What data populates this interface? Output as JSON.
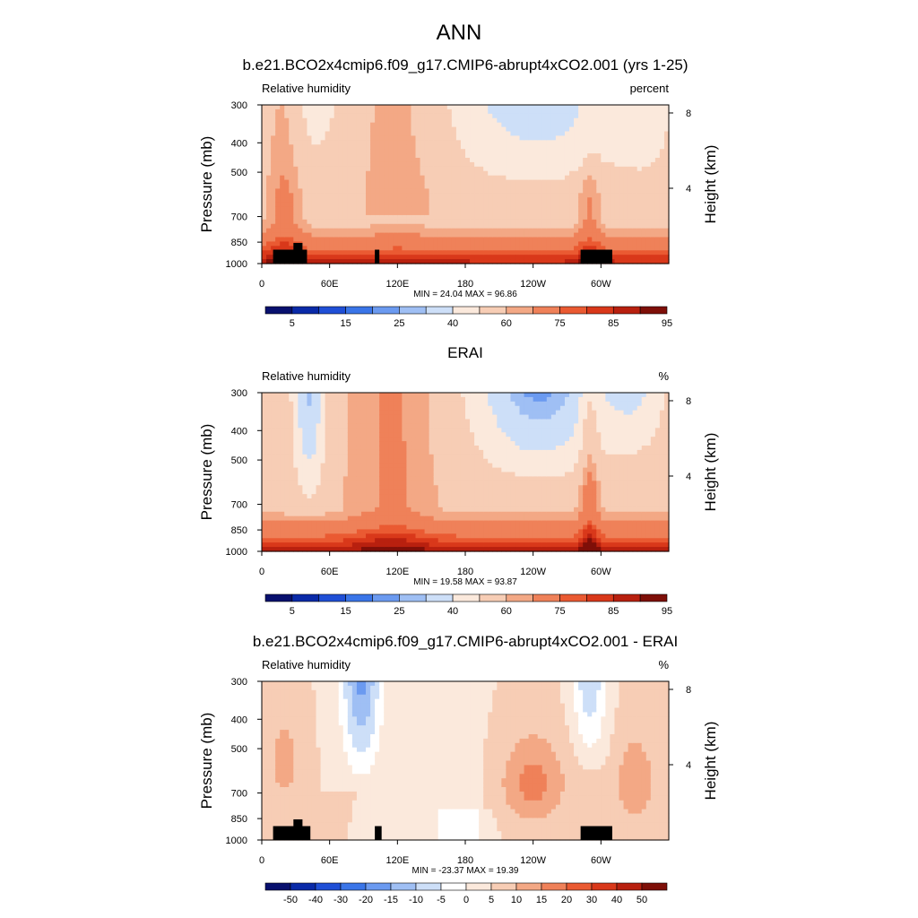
{
  "page": {
    "title": "ANN"
  },
  "colors": {
    "rh_levels": [
      "#08106e",
      "#0a2aa8",
      "#1f4fd6",
      "#3a75e8",
      "#6b9af0",
      "#9fbff4",
      "#cddff8",
      "#fbe9dc",
      "#f7cdb5",
      "#f3a885",
      "#ef8159",
      "#ea5a32",
      "#d9381a",
      "#b8200f",
      "#7e0f08"
    ],
    "diff_levels": [
      "#08106e",
      "#0a2aa8",
      "#1f4fd6",
      "#3a75e8",
      "#6b9af0",
      "#9fbff4",
      "#cddff8",
      "#ffffff",
      "#fbe9dc",
      "#f7cdb5",
      "#f3a885",
      "#ef8159",
      "#ea5a32",
      "#d9381a",
      "#b8200f",
      "#7e0f08"
    ],
    "topography": "#000000"
  },
  "chart_data": [
    {
      "type": "heatmap",
      "title": "b.e21.BCO2x4cmip6.f09_g17.CMIP6-abrupt4xCO2.001 (yrs 1-25)",
      "left_label": "Relative humidity",
      "right_label": "percent",
      "ylabel": "Pressure (mb)",
      "ylabel_right": "Height (km)",
      "x_ticks": [
        "0",
        "60E",
        "120E",
        "180",
        "120W",
        "60W"
      ],
      "x_tick_values": [
        0,
        60,
        120,
        180,
        240,
        300
      ],
      "xlim": [
        0,
        360
      ],
      "y_ticks": [
        "300",
        "400",
        "500",
        "700",
        "850",
        "1000"
      ],
      "y_tick_values": [
        300,
        400,
        500,
        700,
        850,
        1000
      ],
      "ylim": [
        1000,
        300
      ],
      "y_scale": "log",
      "right_ticks": [
        "8",
        "4"
      ],
      "right_tick_values": [
        8,
        4
      ],
      "minmax_text": "MIN =  24.04  MAX =  96.86",
      "min": 24.04,
      "max": 96.86,
      "colorbar_labels": [
        "5",
        "15",
        "25",
        "40",
        "60",
        "75",
        "85",
        "95"
      ],
      "colorbar_levels": [
        5,
        10,
        15,
        20,
        25,
        30,
        40,
        50,
        60,
        65,
        75,
        80,
        85,
        90,
        95
      ],
      "topography": true
    },
    {
      "type": "heatmap",
      "title": "ERAI",
      "left_label": "Relative humidity",
      "right_label": "%",
      "ylabel": "Pressure (mb)",
      "ylabel_right": "Height (km)",
      "x_ticks": [
        "0",
        "60E",
        "120E",
        "180",
        "120W",
        "60W"
      ],
      "x_tick_values": [
        0,
        60,
        120,
        180,
        240,
        300
      ],
      "xlim": [
        0,
        360
      ],
      "y_ticks": [
        "300",
        "400",
        "500",
        "700",
        "850",
        "1000"
      ],
      "y_tick_values": [
        300,
        400,
        500,
        700,
        850,
        1000
      ],
      "ylim": [
        1000,
        300
      ],
      "y_scale": "log",
      "right_ticks": [
        "8",
        "4"
      ],
      "right_tick_values": [
        8,
        4
      ],
      "minmax_text": "MIN =  19.58  MAX =  93.87",
      "min": 19.58,
      "max": 93.87,
      "colorbar_labels": [
        "5",
        "15",
        "25",
        "40",
        "60",
        "75",
        "85",
        "95"
      ],
      "colorbar_levels": [
        5,
        10,
        15,
        20,
        25,
        30,
        40,
        50,
        60,
        65,
        75,
        80,
        85,
        90,
        95
      ],
      "topography": false
    },
    {
      "type": "heatmap",
      "title": "b.e21.BCO2x4cmip6.f09_g17.CMIP6-abrupt4xCO2.001 - ERAI",
      "left_label": "Relative humidity",
      "right_label": "%",
      "ylabel": "Pressure (mb)",
      "ylabel_right": "Height (km)",
      "x_ticks": [
        "0",
        "60E",
        "120E",
        "180",
        "120W",
        "60W"
      ],
      "x_tick_values": [
        0,
        60,
        120,
        180,
        240,
        300
      ],
      "xlim": [
        0,
        360
      ],
      "y_ticks": [
        "300",
        "400",
        "500",
        "700",
        "850",
        "1000"
      ],
      "y_tick_values": [
        300,
        400,
        500,
        700,
        850,
        1000
      ],
      "ylim": [
        1000,
        300
      ],
      "y_scale": "log",
      "right_ticks": [
        "8",
        "4"
      ],
      "right_tick_values": [
        8,
        4
      ],
      "minmax_text": "MIN = -23.37  MAX =  19.39",
      "min": -23.37,
      "max": 19.39,
      "colorbar_labels": [
        "-50",
        "-40",
        "-30",
        "-20",
        "-15",
        "-10",
        "-5",
        "0",
        "5",
        "10",
        "15",
        "20",
        "30",
        "40",
        "50"
      ],
      "colorbar_levels": [
        -50,
        -40,
        -30,
        -20,
        -15,
        -10,
        -5,
        0,
        5,
        10,
        15,
        20,
        30,
        40,
        50
      ],
      "topography": true
    }
  ]
}
